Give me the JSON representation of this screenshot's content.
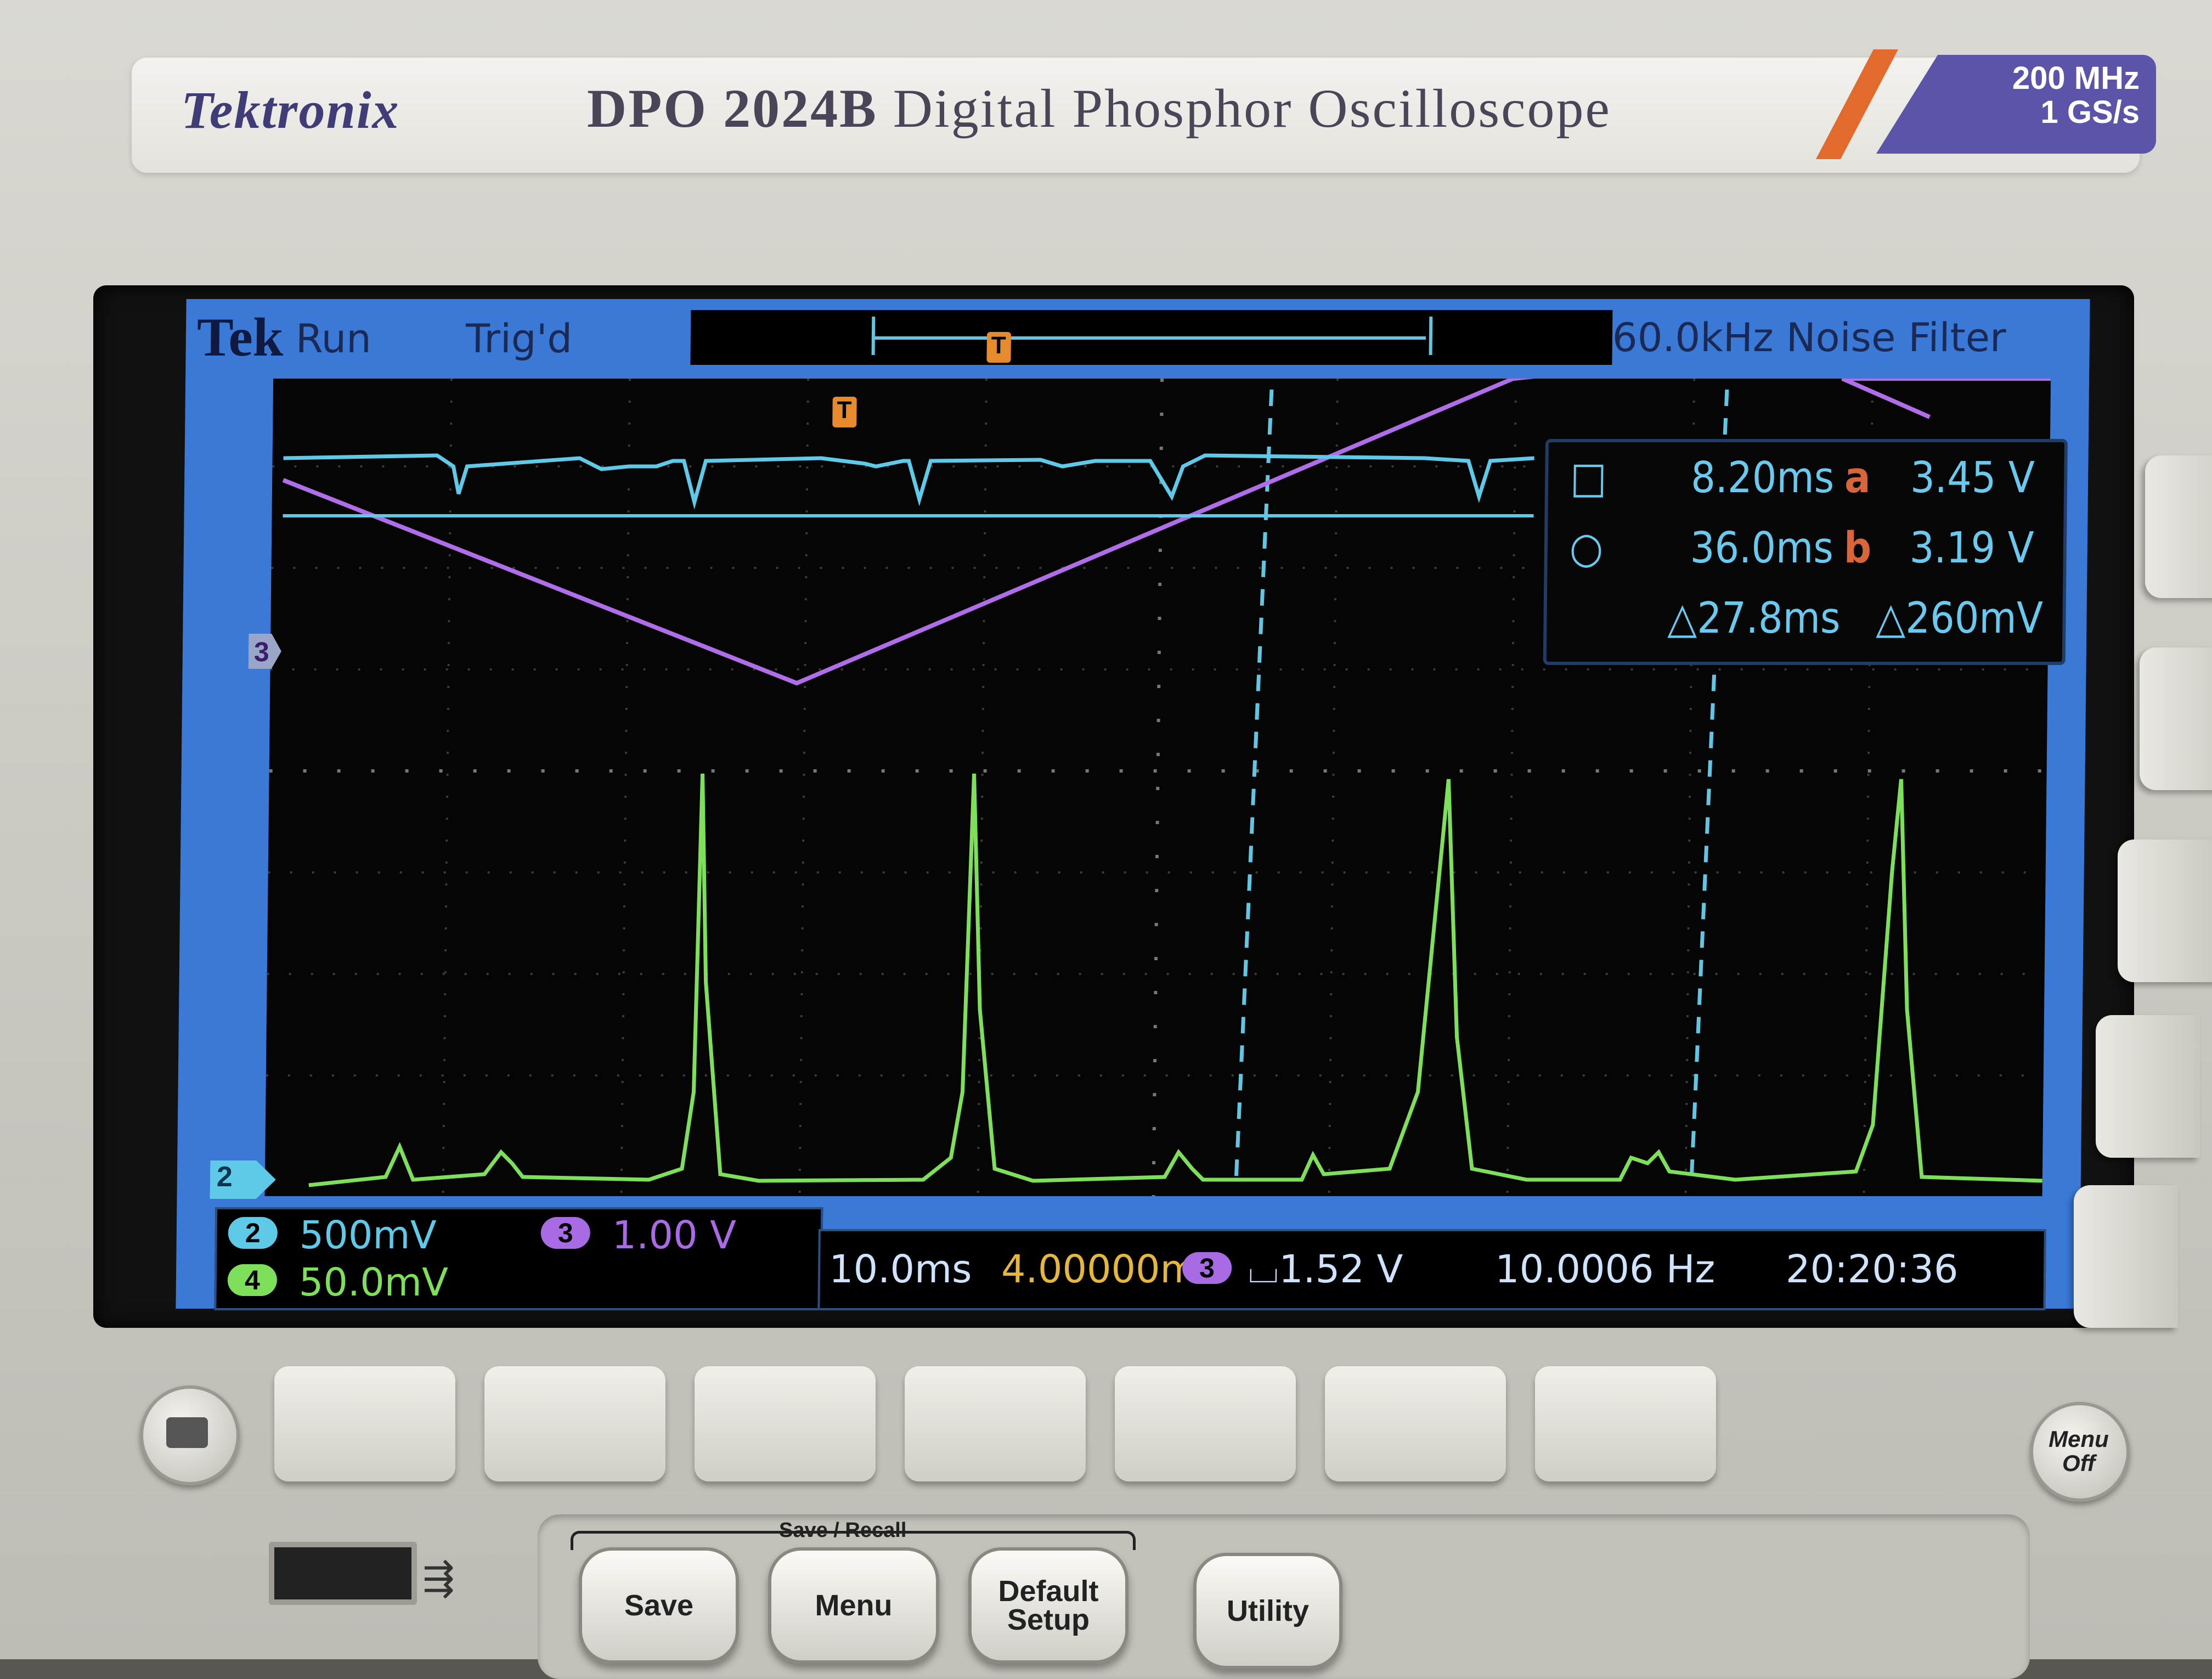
{
  "brand": {
    "logo": "Tektronix",
    "model_bold": "DPO 2024B",
    "model_rest": " Digital Phosphor Oscilloscope",
    "spec_line1": "200 MHz",
    "spec_line2": "1 GS/s"
  },
  "status": {
    "tek": "Tek",
    "state": "Run",
    "trigger": "Trig'd",
    "filter": "60.0kHz  Noise Filter"
  },
  "measurements": {
    "cursor1_time": "8.20ms",
    "cursor_a_label": "a",
    "cursor_a_value": "3.45 V",
    "cursor2_time": "36.0ms",
    "cursor_b_label": "b",
    "cursor_b_value": "3.19 V",
    "delta_time": "△27.8ms",
    "delta_voltage": "△260mV"
  },
  "channels": {
    "ch2": {
      "label": "2",
      "scale": "500mV",
      "color": "#5fc9e8"
    },
    "ch3": {
      "label": "3",
      "scale": "1.00 V",
      "color": "#a96be3"
    },
    "ch4": {
      "label": "4",
      "scale": "50.0mV",
      "color": "#7ee05a"
    }
  },
  "timebase": {
    "scale": "10.0ms",
    "position": "4.00000ms",
    "trigger_source": "3",
    "trigger_level": "⌴1.52 V",
    "frequency": "10.0006 Hz",
    "clock": "20:20:36"
  },
  "markers": {
    "ch3_marker": "3",
    "ch2_marker": "2",
    "trigger_marker": "T",
    "aux_marker": "T"
  },
  "buttons": {
    "save_recall_label": "Save / Recall",
    "save": "Save",
    "menu": "Menu",
    "default_setup_1": "Default",
    "default_setup_2": "Setup",
    "utility": "Utility",
    "menu_off_1": "Menu",
    "menu_off_2": "Off"
  }
}
